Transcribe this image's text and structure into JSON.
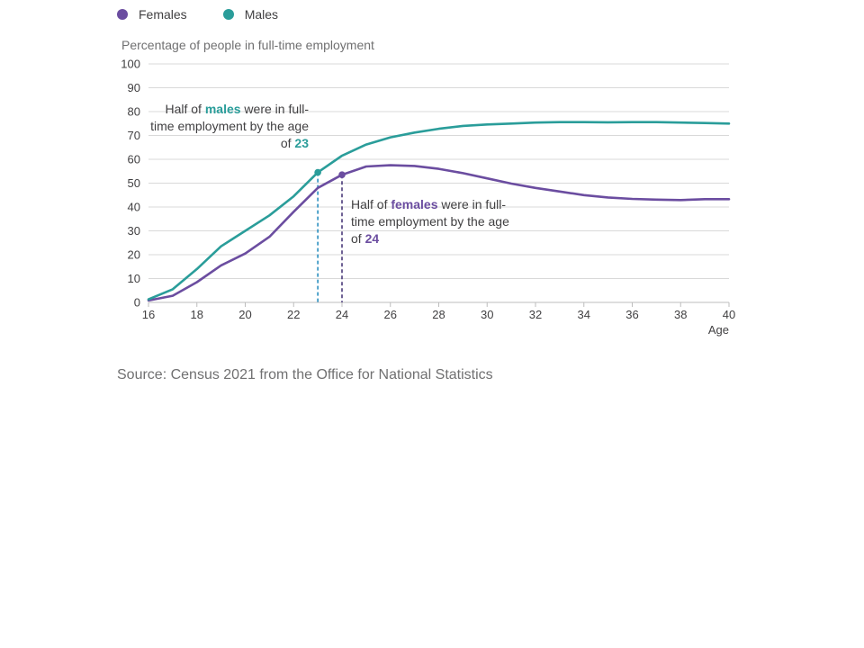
{
  "legend": [
    {
      "label": "Females",
      "color": "#6b4da0"
    },
    {
      "label": "Males",
      "color": "#2a9d9a"
    }
  ],
  "y_axis_title": "Percentage of people in full-time employment",
  "x_axis_title": "Age",
  "source": "Source: Census 2021 from the Office for National Statistics",
  "annotations": {
    "males": {
      "pre": "Half of ",
      "highlight": "males",
      "mid": " were in full-time employment by the age of ",
      "age": "23"
    },
    "females": {
      "pre": "Half of ",
      "highlight": "females",
      "mid": " were in full-time employment by the age of ",
      "age": "24"
    }
  },
  "chart_data": {
    "type": "line",
    "x": [
      16,
      17,
      18,
      19,
      20,
      21,
      22,
      23,
      24,
      25,
      26,
      27,
      28,
      29,
      30,
      31,
      32,
      33,
      34,
      35,
      36,
      37,
      38,
      39,
      40
    ],
    "xlim": [
      16,
      40
    ],
    "ylim": [
      0,
      100
    ],
    "x_ticks": [
      16,
      18,
      20,
      22,
      24,
      26,
      28,
      30,
      32,
      34,
      36,
      38,
      40
    ],
    "y_ticks": [
      0,
      10,
      20,
      30,
      40,
      50,
      60,
      70,
      80,
      90,
      100
    ],
    "grid": "horizontal",
    "legend_position": "top-left",
    "series": [
      {
        "name": "Females",
        "color": "#6b4da0",
        "values": [
          0.8,
          2.8,
          8.5,
          15.5,
          20.5,
          27.5,
          38,
          48,
          53.5,
          57,
          57.5,
          57.2,
          56,
          54.2,
          52,
          49.8,
          48,
          46.5,
          45,
          44,
          43.4,
          43.1,
          42.9,
          43.3,
          43.3
        ]
      },
      {
        "name": "Males",
        "color": "#2a9d9a",
        "values": [
          1.3,
          5.5,
          14,
          23.5,
          30,
          36.5,
          44.5,
          54.5,
          61.5,
          66.2,
          69.2,
          71.2,
          72.8,
          74,
          74.6,
          75,
          75.4,
          75.6,
          75.6,
          75.5,
          75.6,
          75.6,
          75.4,
          75.2,
          75
        ]
      }
    ],
    "markers": [
      {
        "series": "Males",
        "x": 23,
        "y": 54.5
      },
      {
        "series": "Females",
        "x": 24,
        "y": 53.5
      }
    ]
  }
}
